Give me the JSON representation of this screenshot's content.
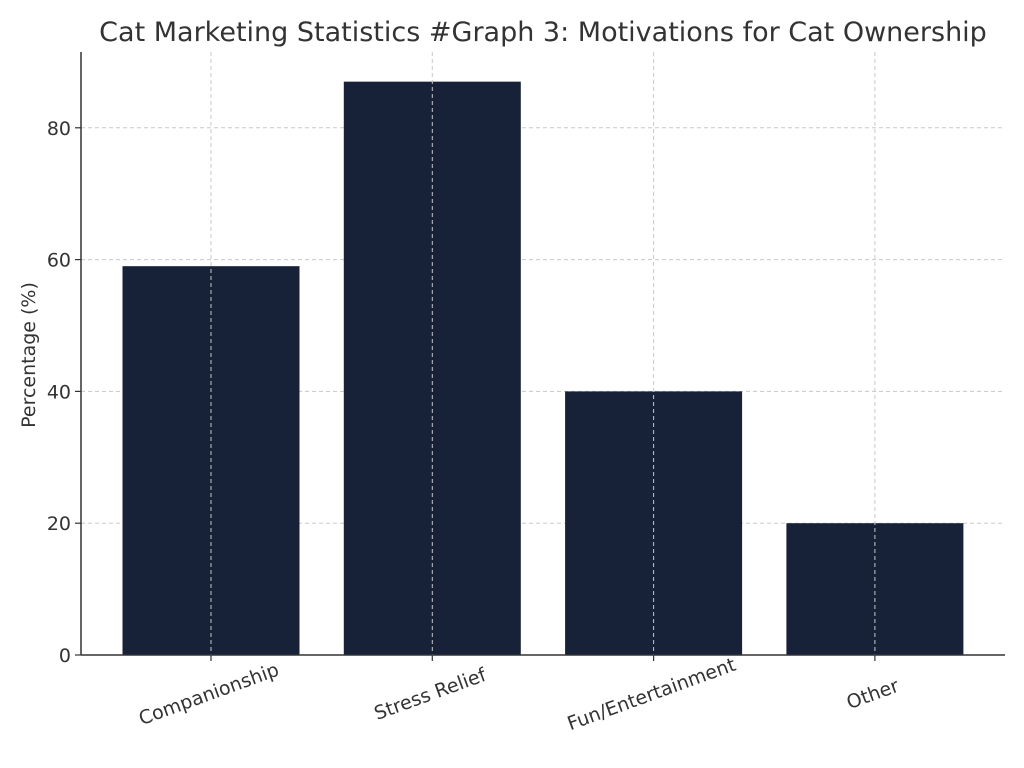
{
  "chart_data": {
    "type": "bar",
    "title": "Cat Marketing Statistics #Graph 3: Motivations for Cat Ownership",
    "xlabel": "",
    "ylabel": "Percentage (%)",
    "categories": [
      "Companionship",
      "Stress Relief",
      "Fun/Entertainment",
      "Other"
    ],
    "values": [
      59,
      87,
      40,
      20
    ],
    "ylim": [
      0,
      91.5
    ],
    "yticks": [
      0,
      20,
      40,
      60,
      80
    ],
    "ytick_labels": [
      "0",
      "20",
      "40",
      "60",
      "80"
    ],
    "bar_color": "#172239",
    "grid": true,
    "xtick_rotation_deg": -20
  }
}
